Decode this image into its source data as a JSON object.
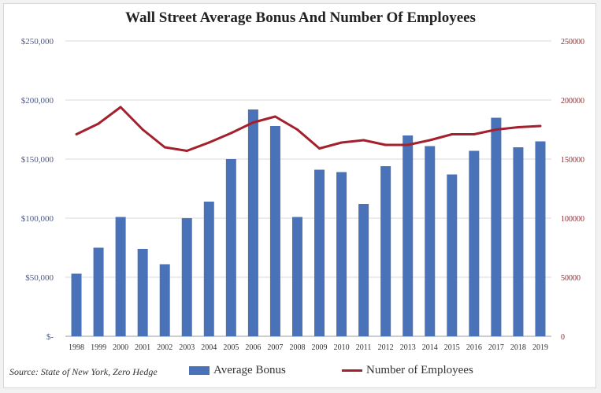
{
  "chart_data": {
    "type": "bar+line",
    "title": "Wall Street Average Bonus And Number Of Employees",
    "categories": [
      "1998",
      "1999",
      "2000",
      "2001",
      "2002",
      "2003",
      "2004",
      "2005",
      "2006",
      "2007",
      "2008",
      "2009",
      "2010",
      "2011",
      "2012",
      "2013",
      "2014",
      "2015",
      "2016",
      "2017",
      "2018",
      "2019"
    ],
    "series": [
      {
        "name": "Average Bonus",
        "type": "bar",
        "axis": "left",
        "color": "#4a72b8",
        "values": [
          53000,
          75000,
          101000,
          74000,
          61000,
          100000,
          114000,
          150000,
          192000,
          178000,
          101000,
          141000,
          139000,
          112000,
          144000,
          170000,
          161000,
          137000,
          157000,
          185000,
          160000,
          165000
        ]
      },
      {
        "name": "Number of Employees",
        "type": "line",
        "axis": "right",
        "color": "#a3202c",
        "values": [
          171000,
          180000,
          194000,
          175000,
          160000,
          157000,
          164000,
          172000,
          181000,
          186000,
          175000,
          159000,
          164000,
          166000,
          162000,
          162000,
          166000,
          171000,
          171000,
          175000,
          177000,
          178000
        ]
      }
    ],
    "y_left": {
      "ticks": [
        "$-",
        "$50,000",
        "$100,000",
        "$150,000",
        "$200,000",
        "$250,000"
      ],
      "range": [
        0,
        250000
      ]
    },
    "y_right": {
      "ticks": [
        "0",
        "50000",
        "100000",
        "150000",
        "200000",
        "250000"
      ],
      "range": [
        0,
        250000
      ]
    },
    "grid": true,
    "legend": "bottom"
  },
  "source": "Source: State of New York, Zero Hedge"
}
